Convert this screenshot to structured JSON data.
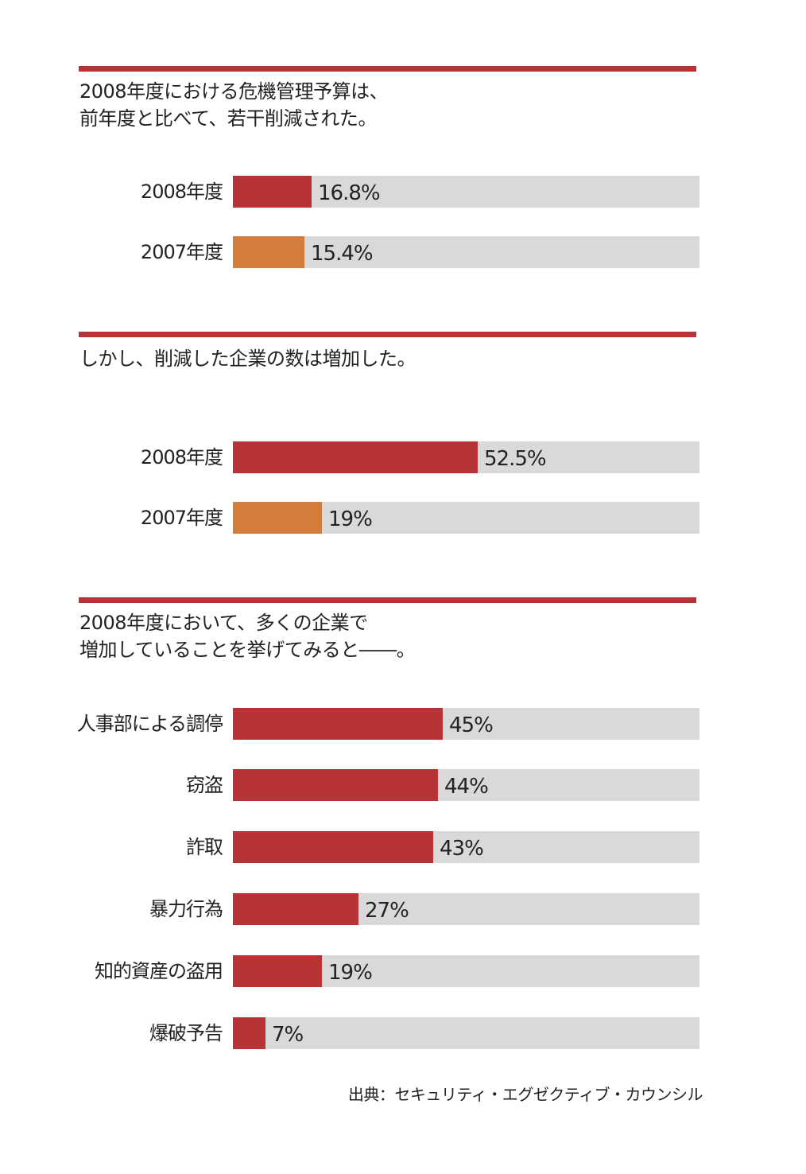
{
  "colors": {
    "red": "#b83335",
    "orange": "#d27d3e",
    "track": "#d9d9d9"
  },
  "source": "出典：セキュリティ・エグゼクティブ・カウンシル",
  "chart_data": [
    {
      "type": "bar",
      "orientation": "horizontal",
      "title": "2008年度における危機管理予算は、\n前年度と比べて、若干削減された。",
      "categories": [
        "2008年度",
        "2007年度"
      ],
      "values": [
        16.8,
        15.4
      ],
      "value_labels": [
        "16.8%",
        "15.4%"
      ],
      "bar_colors": [
        "#b83335",
        "#d27d3e"
      ],
      "xlim": [
        0,
        100
      ]
    },
    {
      "type": "bar",
      "orientation": "horizontal",
      "title": "しかし、削減した企業の数は増加した。",
      "categories": [
        "2008年度",
        "2007年度"
      ],
      "values": [
        52.5,
        19
      ],
      "value_labels": [
        "52.5%",
        "19%"
      ],
      "bar_colors": [
        "#b83335",
        "#d27d3e"
      ],
      "xlim": [
        0,
        100
      ]
    },
    {
      "type": "bar",
      "orientation": "horizontal",
      "title": "2008年度において、多くの企業で\n増加していることを挙げてみると――。",
      "categories": [
        "人事部による調停",
        "窃盗",
        "詐取",
        "暴力行為",
        "知的資産の盗用",
        "爆破予告"
      ],
      "values": [
        45,
        44,
        43,
        27,
        19,
        7
      ],
      "value_labels": [
        "45%",
        "44%",
        "43%",
        "27%",
        "19%",
        "7%"
      ],
      "bar_colors": [
        "#b83335",
        "#b83335",
        "#b83335",
        "#b83335",
        "#b83335",
        "#b83335"
      ],
      "xlim": [
        0,
        100
      ]
    }
  ]
}
